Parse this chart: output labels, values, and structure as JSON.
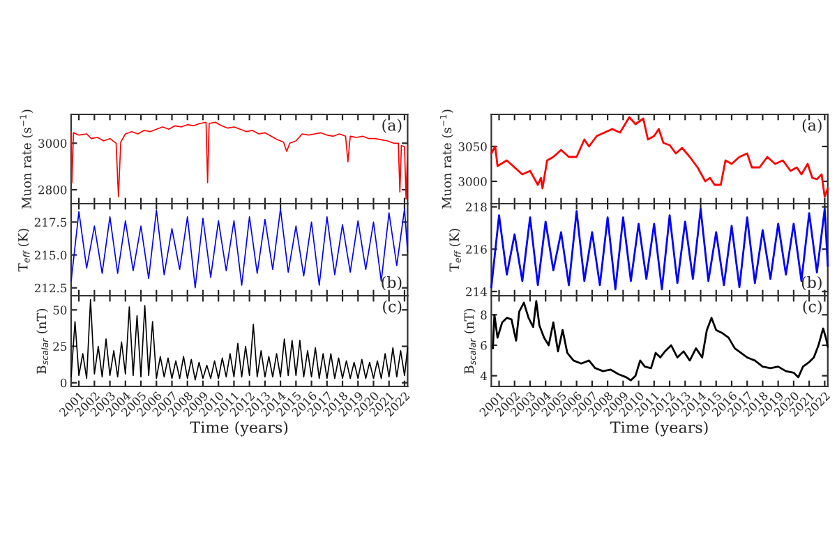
{
  "chart_data": [
    {
      "type": "line",
      "ylabel": "Muon rate (s$^{−1}$)",
      "annotations": [
        "(a)"
      ],
      "tick_labels": "y",
      "xlim": [
        2000.5,
        2022.2
      ],
      "xticks": [
        2001,
        2002,
        2003,
        2004,
        2005,
        2006,
        2007,
        2008,
        2009,
        2010,
        2011,
        2012,
        2013,
        2014,
        2015,
        2016,
        2017,
        2018,
        2019,
        2020,
        2021,
        2022
      ],
      "ylim": [
        2740,
        3124
      ],
      "yticks": [
        2800,
        3000
      ],
      "x": [
        2000.5,
        2000.55,
        2000.65,
        2001.0,
        2001.5,
        2001.8,
        2002.2,
        2002.6,
        2003.0,
        2003.4,
        2003.55,
        2003.7,
        2004.0,
        2004.4,
        2004.8,
        2005.2,
        2005.6,
        2006.0,
        2006.4,
        2006.8,
        2007.2,
        2007.6,
        2008.0,
        2008.4,
        2008.8,
        2009.2,
        2009.3,
        2009.4,
        2009.8,
        2010.2,
        2010.6,
        2011.0,
        2011.4,
        2011.8,
        2012.2,
        2012.6,
        2013.0,
        2013.4,
        2013.8,
        2014.2,
        2014.4,
        2014.6,
        2015.0,
        2015.4,
        2015.8,
        2016.2,
        2016.6,
        2017.0,
        2017.4,
        2017.8,
        2018.2,
        2018.35,
        2018.5,
        2018.9,
        2019.3,
        2019.7,
        2020.1,
        2020.5,
        2020.9,
        2021.3,
        2021.6,
        2021.7,
        2021.8,
        2022.0,
        2022.1,
        2022.2
      ],
      "series": [
        {
          "color": "#ff0000",
          "values": [
            3050,
            2830,
            3045,
            3035,
            3040,
            3020,
            3025,
            3010,
            3020,
            3000,
            2770,
            3005,
            3040,
            3050,
            3040,
            3055,
            3050,
            3060,
            3070,
            3060,
            3075,
            3070,
            3080,
            3075,
            3085,
            3090,
            2830,
            3085,
            3090,
            3075,
            3065,
            3070,
            3060,
            3050,
            3055,
            3040,
            3045,
            3030,
            3015,
            3005,
            2965,
            3000,
            3010,
            3040,
            3035,
            3040,
            3045,
            3035,
            3030,
            3040,
            3030,
            2920,
            3030,
            3025,
            3030,
            3020,
            3020,
            3015,
            3010,
            3000,
            3000,
            2790,
            2990,
            2985,
            2760,
            2990
          ]
        }
      ]
    },
    {
      "type": "line",
      "ylabel": "Muon rate (s$^{−1}$)",
      "annotations": [
        "(a)"
      ],
      "tick_labels": "y",
      "xlim": [
        2000.5,
        2022.2
      ],
      "xticks": [
        2001,
        2002,
        2003,
        2004,
        2005,
        2006,
        2007,
        2008,
        2009,
        2010,
        2011,
        2012,
        2013,
        2014,
        2015,
        2016,
        2017,
        2018,
        2019,
        2020,
        2021,
        2022
      ],
      "ylim": [
        2968,
        3096
      ],
      "yticks": [
        3000,
        3050
      ],
      "x": [
        2000.5,
        2000.75,
        2000.9,
        2001.5,
        2002.0,
        2002.5,
        2003.0,
        2003.5,
        2003.7,
        2003.8,
        2004.1,
        2004.5,
        2005.0,
        2005.5,
        2006.0,
        2006.5,
        2006.8,
        2007.3,
        2007.8,
        2008.3,
        2008.8,
        2009.4,
        2009.8,
        2010.3,
        2010.6,
        2011.0,
        2011.3,
        2011.6,
        2012.0,
        2012.4,
        2012.8,
        2013.3,
        2013.8,
        2014.3,
        2014.6,
        2014.9,
        2015.3,
        2015.6,
        2016.0,
        2016.5,
        2017.0,
        2017.3,
        2017.8,
        2018.3,
        2018.8,
        2019.3,
        2019.8,
        2020.2,
        2020.5,
        2020.9,
        2021.2,
        2021.5,
        2021.8,
        2022.0,
        2022.2
      ],
      "series": [
        {
          "color": "#ff0000",
          "values": [
            3040,
            3050,
            3022,
            3030,
            3020,
            3010,
            3015,
            2995,
            3005,
            2990,
            3030,
            3035,
            3045,
            3035,
            3035,
            3060,
            3050,
            3065,
            3070,
            3075,
            3070,
            3092,
            3082,
            3090,
            3060,
            3065,
            3075,
            3055,
            3052,
            3040,
            3048,
            3035,
            3020,
            3000,
            3005,
            2995,
            2995,
            3030,
            3025,
            3035,
            3040,
            3020,
            3020,
            3035,
            3025,
            3030,
            3015,
            3020,
            3010,
            3025,
            3005,
            3003,
            3010,
            2978,
            2990
          ]
        }
      ]
    },
    {
      "type": "line",
      "ylabel": "T$_{eff}$ (K)",
      "annotations": [
        "(b)"
      ],
      "tick_labels": "y",
      "xlim": [
        2000.5,
        2022.2
      ],
      "xticks": [
        2001,
        2002,
        2003,
        2004,
        2005,
        2006,
        2007,
        2008,
        2009,
        2010,
        2011,
        2012,
        2013,
        2014,
        2015,
        2016,
        2017,
        2018,
        2019,
        2020,
        2021,
        2022
      ],
      "ylim": [
        211.9,
        218.9
      ],
      "yticks": [
        212.5,
        {
          "value": 215.0,
          "label": "215.0"
        },
        217.5
      ],
      "x": [
        2000.5,
        2001,
        2001.5,
        2002,
        2002.5,
        2003,
        2003.5,
        2004,
        2004.5,
        2005,
        2005.5,
        2006,
        2006.5,
        2007,
        2007.5,
        2008,
        2008.5,
        2009,
        2009.5,
        2010,
        2010.5,
        2011,
        2011.5,
        2012,
        2012.5,
        2013,
        2013.5,
        2014,
        2014.5,
        2015,
        2015.5,
        2016,
        2016.5,
        2017,
        2017.5,
        2018,
        2018.5,
        2019,
        2019.5,
        2020,
        2020.5,
        2021,
        2021.5,
        2022,
        2022.2
      ],
      "series": [
        {
          "color": "#0000ff",
          "values": [
            213.0,
            218.3,
            214.0,
            217.2,
            213.6,
            217.9,
            213.6,
            217.6,
            213.8,
            217.2,
            213.2,
            218.4,
            213.5,
            217.0,
            213.9,
            217.9,
            212.5,
            217.8,
            213.3,
            217.6,
            213.8,
            217.6,
            212.7,
            217.9,
            213.6,
            217.7,
            213.9,
            218.5,
            213.7,
            217.2,
            213.4,
            217.5,
            212.7,
            217.9,
            213.5,
            217.3,
            213.7,
            217.6,
            213.9,
            217.5,
            213.0,
            218.2,
            214.2,
            218.5,
            215.2
          ]
        }
      ]
    },
    {
      "type": "line",
      "ylabel": "T$_{eff}$ (K)",
      "annotations": [
        "(b)"
      ],
      "tick_labels": "y",
      "xlim": [
        2000.5,
        2022.2
      ],
      "xticks": [
        2001,
        2002,
        2003,
        2004,
        2005,
        2006,
        2007,
        2008,
        2009,
        2010,
        2011,
        2012,
        2013,
        2014,
        2015,
        2016,
        2017,
        2018,
        2019,
        2020,
        2021,
        2022
      ],
      "ylim": [
        213.8,
        218.15
      ],
      "yticks": [
        214,
        216,
        218
      ],
      "x": [
        2000.5,
        2001,
        2001.5,
        2002,
        2002.5,
        2003,
        2003.5,
        2004,
        2004.5,
        2005,
        2005.5,
        2006,
        2006.5,
        2007,
        2007.5,
        2008,
        2008.5,
        2009,
        2009.5,
        2010,
        2010.5,
        2011,
        2011.5,
        2012,
        2012.5,
        2013,
        2013.5,
        2014,
        2014.5,
        2015,
        2015.5,
        2016,
        2016.5,
        2017,
        2017.5,
        2018,
        2018.5,
        2019,
        2019.5,
        2020,
        2020.5,
        2021,
        2021.5,
        2022,
        2022.2
      ],
      "series": [
        {
          "color": "#0000ff",
          "values": [
            214.2,
            217.6,
            214.8,
            216.7,
            214.5,
            217.5,
            214.3,
            217.3,
            215.0,
            216.8,
            214.3,
            217.8,
            214.5,
            216.8,
            214.3,
            217.5,
            214.1,
            217.5,
            214.5,
            217.2,
            214.6,
            217.2,
            214.1,
            217.6,
            214.4,
            217.3,
            214.6,
            217.9,
            214.5,
            216.8,
            214.3,
            217.1,
            214.2,
            217.5,
            214.4,
            216.9,
            214.6,
            217.2,
            214.8,
            217.2,
            214.5,
            217.7,
            214.9,
            217.9,
            215.2
          ]
        }
      ]
    },
    {
      "type": "line",
      "ylabel": "B$_{scalar}$ (nT)",
      "xlabel": "Time (years)",
      "annotations": [
        "(c)"
      ],
      "xlim": [
        2000.5,
        2022.2
      ],
      "xticks": [
        2001,
        2002,
        2003,
        2004,
        2005,
        2006,
        2007,
        2008,
        2009,
        2010,
        2011,
        2012,
        2013,
        2014,
        2015,
        2016,
        2017,
        2018,
        2019,
        2020,
        2021,
        2022
      ],
      "ylim": [
        -2.5,
        59.7
      ],
      "yticks": [
        0,
        25,
        50
      ],
      "x": [
        2000.5,
        2000.75,
        2001.0,
        2001.25,
        2001.5,
        2001.75,
        2002.0,
        2002.25,
        2002.5,
        2002.75,
        2003.0,
        2003.25,
        2003.5,
        2003.75,
        2004.0,
        2004.25,
        2004.5,
        2004.75,
        2005.0,
        2005.25,
        2005.5,
        2005.75,
        2006.0,
        2006.25,
        2006.5,
        2006.75,
        2007.0,
        2007.25,
        2007.5,
        2007.75,
        2008.0,
        2008.25,
        2008.5,
        2008.75,
        2009.0,
        2009.25,
        2009.5,
        2009.75,
        2010.0,
        2010.25,
        2010.5,
        2010.75,
        2011.0,
        2011.25,
        2011.5,
        2011.75,
        2012.0,
        2012.25,
        2012.5,
        2012.75,
        2013.0,
        2013.25,
        2013.5,
        2013.75,
        2014.0,
        2014.25,
        2014.5,
        2014.75,
        2015.0,
        2015.25,
        2015.5,
        2015.75,
        2016.0,
        2016.25,
        2016.5,
        2016.75,
        2017.0,
        2017.25,
        2017.5,
        2017.75,
        2018.0,
        2018.25,
        2018.5,
        2018.75,
        2019.0,
        2019.25,
        2019.5,
        2019.75,
        2020.0,
        2020.25,
        2020.5,
        2020.75,
        2021.0,
        2021.25,
        2021.5,
        2021.75,
        2022.0,
        2022.2
      ],
      "series": [
        {
          "color": "#000000",
          "values": [
            4,
            42,
            5,
            20,
            3,
            57,
            6,
            25,
            4,
            30,
            5,
            22,
            4,
            28,
            6,
            52,
            5,
            46,
            4,
            53,
            5,
            42,
            3,
            18,
            4,
            17,
            3,
            15,
            3,
            18,
            3,
            16,
            2,
            14,
            3,
            12,
            3,
            15,
            3,
            17,
            4,
            20,
            4,
            27,
            4,
            25,
            5,
            40,
            4,
            22,
            4,
            18,
            4,
            20,
            4,
            30,
            5,
            29,
            5,
            29,
            4,
            22,
            4,
            24,
            3,
            20,
            3,
            20,
            3,
            17,
            3,
            15,
            3,
            14,
            3,
            16,
            3,
            14,
            3,
            15,
            3,
            20,
            4,
            24,
            4,
            22,
            5,
            24
          ]
        }
      ]
    },
    {
      "type": "line",
      "ylabel": "B$_{scalar}$ (nT)",
      "xlabel": "Time (years)",
      "annotations": [
        "(c)"
      ],
      "xlim": [
        2000.5,
        2022.2
      ],
      "xticks": [
        2001,
        2002,
        2003,
        2004,
        2005,
        2006,
        2007,
        2008,
        2009,
        2010,
        2011,
        2012,
        2013,
        2014,
        2015,
        2016,
        2017,
        2018,
        2019,
        2020,
        2021,
        2022
      ],
      "ylim": [
        3.3,
        9.25
      ],
      "yticks": [
        4,
        6,
        8
      ],
      "x": [
        2000.6,
        2000.7,
        2000.9,
        2001.2,
        2001.5,
        2001.8,
        2002.1,
        2002.3,
        2002.6,
        2002.9,
        2003.2,
        2003.4,
        2003.6,
        2003.9,
        2004.2,
        2004.5,
        2004.8,
        2005.1,
        2005.4,
        2005.8,
        2006.3,
        2006.8,
        2007.2,
        2007.7,
        2008.2,
        2008.7,
        2009.2,
        2009.5,
        2009.8,
        2010.1,
        2010.4,
        2010.8,
        2011.1,
        2011.4,
        2011.7,
        2012.1,
        2012.5,
        2012.9,
        2013.3,
        2013.7,
        2014.1,
        2014.4,
        2014.7,
        2015.0,
        2015.4,
        2015.8,
        2016.2,
        2016.6,
        2017.0,
        2017.5,
        2018.0,
        2018.5,
        2019.0,
        2019.5,
        2020.0,
        2020.3,
        2020.6,
        2021.0,
        2021.3,
        2021.6,
        2021.9,
        2022.1,
        2022.2
      ],
      "series": [
        {
          "color": "#000000",
          "values": [
            5.8,
            8.0,
            6.5,
            7.5,
            7.8,
            7.7,
            6.3,
            8.2,
            8.8,
            7.8,
            7.2,
            8.9,
            7.3,
            6.5,
            6.0,
            7.5,
            5.6,
            7.0,
            5.5,
            5.0,
            4.8,
            5.0,
            4.5,
            4.3,
            4.4,
            4.1,
            3.9,
            3.7,
            4.0,
            5.0,
            4.6,
            4.5,
            5.5,
            5.2,
            5.6,
            6.0,
            5.2,
            5.6,
            5.0,
            5.8,
            5.2,
            7.0,
            7.8,
            7.0,
            6.8,
            6.5,
            5.8,
            5.5,
            5.2,
            5.0,
            4.6,
            4.5,
            4.6,
            4.3,
            4.2,
            3.9,
            4.6,
            4.9,
            5.2,
            6.0,
            7.1,
            6.4,
            5.9
          ]
        }
      ]
    }
  ]
}
